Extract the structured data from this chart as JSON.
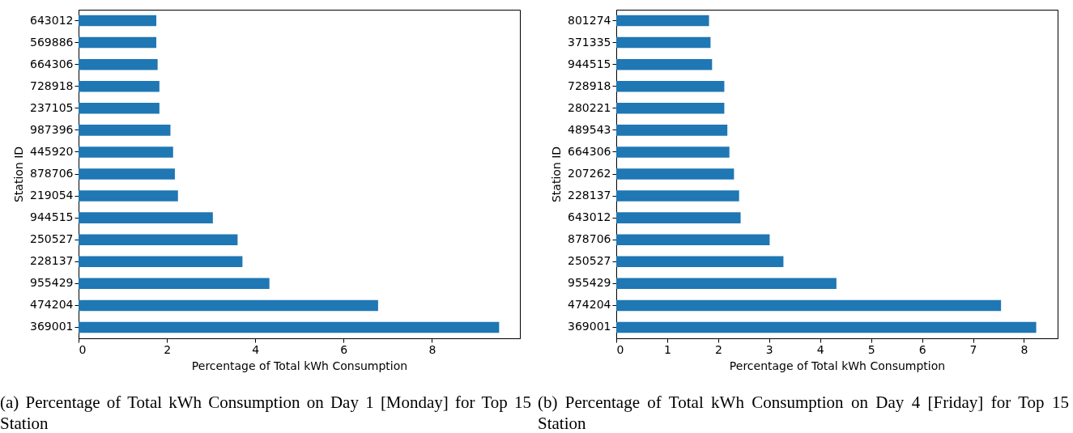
{
  "chart_data": [
    {
      "type": "bar",
      "orientation": "horizontal",
      "xlabel": "Percentage of Total kWh Consumption",
      "ylabel": "Station ID",
      "color": "#1f77b4",
      "categories": [
        "643012",
        "569886",
        "664306",
        "728918",
        "237105",
        "987396",
        "445920",
        "878706",
        "219054",
        "944515",
        "250527",
        "228137",
        "955429",
        "474204",
        "369001"
      ],
      "values": [
        1.76,
        1.76,
        1.79,
        1.83,
        1.83,
        2.08,
        2.14,
        2.18,
        2.25,
        3.04,
        3.6,
        3.71,
        4.32,
        6.78,
        9.52
      ],
      "xlim": [
        0,
        9.99
      ],
      "xticks": [
        0,
        2,
        4,
        6,
        8
      ],
      "annotations": [
        "(a) Percentage of Total kWh Consumption on Day 1 [Monday] for Top 15 Station"
      ]
    },
    {
      "type": "bar",
      "orientation": "horizontal",
      "xlabel": "Percentage of Total kWh Consumption",
      "ylabel": "Station ID",
      "color": "#1f77b4",
      "categories": [
        "801274",
        "371335",
        "944515",
        "728918",
        "280221",
        "489543",
        "664306",
        "207262",
        "228137",
        "643012",
        "878706",
        "250527",
        "955429",
        "474204",
        "369001"
      ],
      "values": [
        1.82,
        1.85,
        1.88,
        2.12,
        2.12,
        2.18,
        2.22,
        2.31,
        2.41,
        2.44,
        3.01,
        3.28,
        4.32,
        7.55,
        8.24
      ],
      "xlim": [
        0,
        8.66
      ],
      "xticks": [
        0,
        1,
        2,
        3,
        4,
        5,
        6,
        7,
        8
      ],
      "annotations": [
        "(b) Percentage of Total kWh Consumption on Day 4 [Friday] for Top 15 Station"
      ]
    }
  ]
}
